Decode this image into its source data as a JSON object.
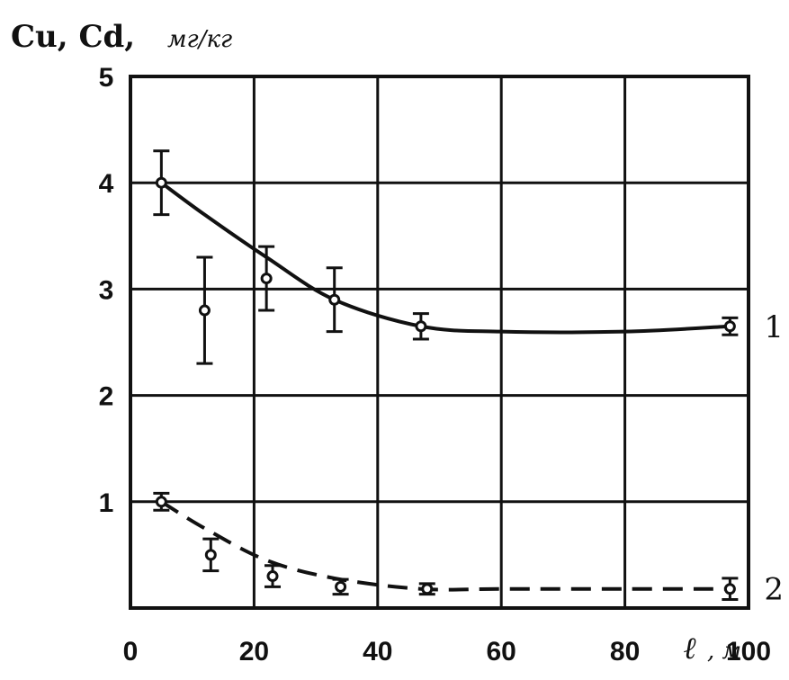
{
  "chart_data": {
    "type": "line",
    "ylabel_main": "Cu, Cd,",
    "ylabel_unit": "мг/кг",
    "xlabel_var": "ℓ",
    "xlabel_unit": ", м",
    "xlim": [
      0,
      100
    ],
    "ylim": [
      0,
      5
    ],
    "x_ticks": [
      "0",
      "20",
      "40",
      "60",
      "80",
      "100"
    ],
    "y_ticks": [
      "1",
      "2",
      "3",
      "4",
      "5"
    ],
    "grid": true,
    "series": [
      {
        "name": "1",
        "style": "solid",
        "curve": [
          [
            5,
            4.0
          ],
          [
            12,
            3.7
          ],
          [
            22,
            3.3
          ],
          [
            33,
            2.9
          ],
          [
            47,
            2.65
          ],
          [
            60,
            2.6
          ],
          [
            80,
            2.6
          ],
          [
            97,
            2.65
          ]
        ],
        "points": [
          {
            "x": 5,
            "y": 4.0,
            "err": 0.3
          },
          {
            "x": 12,
            "y": 2.8,
            "err": 0.5
          },
          {
            "x": 22,
            "y": 3.1,
            "err": 0.3
          },
          {
            "x": 33,
            "y": 2.9,
            "err": 0.3
          },
          {
            "x": 47,
            "y": 2.65,
            "err": 0.12
          },
          {
            "x": 97,
            "y": 2.65,
            "err": 0.08
          }
        ]
      },
      {
        "name": "2",
        "style": "dashed",
        "curve": [
          [
            5,
            1.0
          ],
          [
            12,
            0.75
          ],
          [
            22,
            0.45
          ],
          [
            33,
            0.28
          ],
          [
            47,
            0.18
          ],
          [
            60,
            0.18
          ],
          [
            80,
            0.18
          ],
          [
            97,
            0.18
          ]
        ],
        "points": [
          {
            "x": 5,
            "y": 1.0,
            "err": 0.08
          },
          {
            "x": 13,
            "y": 0.5,
            "err": 0.15
          },
          {
            "x": 23,
            "y": 0.3,
            "err": 0.1
          },
          {
            "x": 34,
            "y": 0.2,
            "err": 0.07
          },
          {
            "x": 48,
            "y": 0.18,
            "err": 0.05
          },
          {
            "x": 97,
            "y": 0.18,
            "err": 0.1
          }
        ]
      }
    ]
  }
}
